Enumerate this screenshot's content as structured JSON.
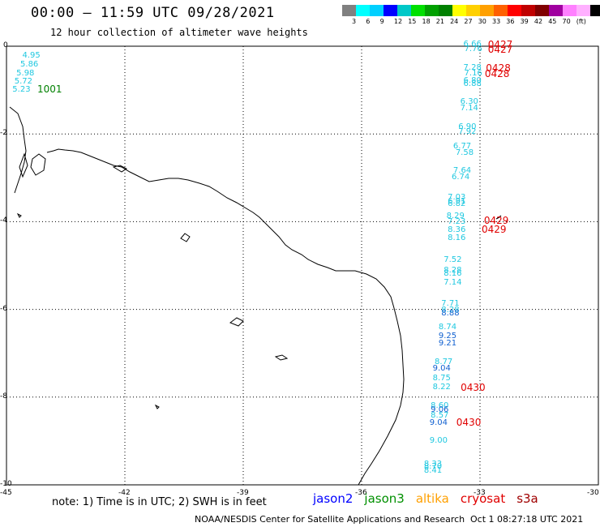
{
  "title": "00:00 – 11:59 UTC 09/28/2021",
  "subtitle": "12 hour collection of altimeter wave heights",
  "colorbar": {
    "colors": [
      "#808080",
      "#00ffff",
      "#00d0ff",
      "#0000ff",
      "#00c8c8",
      "#00e000",
      "#00a000",
      "#008000",
      "#ffff00",
      "#ffd000",
      "#ffa000",
      "#ff6000",
      "#ff0000",
      "#c00000",
      "#800000",
      "#a000a0",
      "#ff80ff",
      "#ffb0ff",
      "#000000"
    ],
    "ticks": [
      "3",
      "6",
      "9",
      "12",
      "15",
      "18",
      "21",
      "24",
      "27",
      "30",
      "33",
      "36",
      "39",
      "42",
      "45",
      "70",
      "(ft)"
    ]
  },
  "axes": {
    "x_ticks": [
      "-45",
      "-42",
      "-39",
      "-36",
      "-33",
      "-30"
    ],
    "y_ticks": [
      "0",
      "-2",
      "-4",
      "-6",
      "-8",
      "-10"
    ]
  },
  "satellites": [
    {
      "name": "jason2",
      "color": "#0000ff"
    },
    {
      "name": "jason3",
      "color": "#009000"
    },
    {
      "name": "altika",
      "color": "#ffa000"
    },
    {
      "name": "cryosat",
      "color": "#e00000"
    },
    {
      "name": "s3a",
      "color": "#a00000"
    }
  ],
  "note": "note: 1) Time is in UTC; 2) SWH is in feet",
  "credit": "NOAA/NESDIS Center for Satellite Applications and Research",
  "credit_time": "Oct  1 08:27:18 UTC 2021",
  "wave_labels": [
    {
      "text": "4.95",
      "lon": -44.6,
      "lat": -0.22,
      "c": "#20c8e0"
    },
    {
      "text": "5.86",
      "lon": -44.65,
      "lat": -0.42,
      "c": "#20c8e0"
    },
    {
      "text": "5.98",
      "lon": -44.75,
      "lat": -0.62,
      "c": "#20c8e0"
    },
    {
      "text": "5.72",
      "lon": -44.8,
      "lat": -0.82,
      "c": "#20c8e0"
    },
    {
      "text": "5.23",
      "lon": -44.85,
      "lat": -1.0,
      "c": "#20c8e0"
    },
    {
      "text": "6.66",
      "lon": -33.42,
      "lat": 0.04,
      "c": "#20c8e0"
    },
    {
      "text": "7.76",
      "lon": -33.4,
      "lat": -0.08,
      "c": "#20c8e0"
    },
    {
      "text": "7.28",
      "lon": -33.42,
      "lat": -0.5,
      "c": "#20c8e0"
    },
    {
      "text": "7.16",
      "lon": -33.4,
      "lat": -0.62,
      "c": "#20c8e0"
    },
    {
      "text": "6.80",
      "lon": -33.42,
      "lat": -0.8,
      "c": "#20c8e0"
    },
    {
      "text": "6.88",
      "lon": -33.42,
      "lat": -0.87,
      "c": "#20c8e0"
    },
    {
      "text": "6.30",
      "lon": -33.5,
      "lat": -1.28,
      "c": "#20c8e0"
    },
    {
      "text": "7.14",
      "lon": -33.5,
      "lat": -1.43,
      "c": "#20c8e0"
    },
    {
      "text": "6.90",
      "lon": -33.55,
      "lat": -1.84,
      "c": "#20c8e0"
    },
    {
      "text": "7.92",
      "lon": -33.55,
      "lat": -1.96,
      "c": "#20c8e0"
    },
    {
      "text": "6.77",
      "lon": -33.68,
      "lat": -2.3,
      "c": "#20c8e0"
    },
    {
      "text": "7.58",
      "lon": -33.62,
      "lat": -2.44,
      "c": "#20c8e0"
    },
    {
      "text": "7.64",
      "lon": -33.68,
      "lat": -2.84,
      "c": "#20c8e0"
    },
    {
      "text": "6.74",
      "lon": -33.72,
      "lat": -3.0,
      "c": "#20c8e0"
    },
    {
      "text": "7.03",
      "lon": -33.82,
      "lat": -3.45,
      "c": "#20c8e0"
    },
    {
      "text": "6.91",
      "lon": -33.82,
      "lat": -3.55,
      "c": "#20c8e0"
    },
    {
      "text": "6.82",
      "lon": -33.82,
      "lat": -3.61,
      "c": "#20c8e0"
    },
    {
      "text": "8.29",
      "lon": -33.85,
      "lat": -3.88,
      "c": "#20c8e0"
    },
    {
      "text": "7.23",
      "lon": -33.82,
      "lat": -4.02,
      "c": "#20c8e0"
    },
    {
      "text": "8.36",
      "lon": -33.82,
      "lat": -4.2,
      "c": "#20c8e0"
    },
    {
      "text": "8.16",
      "lon": -33.82,
      "lat": -4.38,
      "c": "#20c8e0"
    },
    {
      "text": "7.52",
      "lon": -33.92,
      "lat": -4.88,
      "c": "#20c8e0"
    },
    {
      "text": "8.28",
      "lon": -33.92,
      "lat": -5.12,
      "c": "#20c8e0"
    },
    {
      "text": "8.16",
      "lon": -33.92,
      "lat": -5.2,
      "c": "#20c8e0"
    },
    {
      "text": "7.14",
      "lon": -33.92,
      "lat": -5.4,
      "c": "#20c8e0"
    },
    {
      "text": "7.71",
      "lon": -33.98,
      "lat": -5.88,
      "c": "#20c8e0"
    },
    {
      "text": "8.28",
      "lon": -33.98,
      "lat": -6.02,
      "c": "#20c8e0"
    },
    {
      "text": "8.88",
      "lon": -33.98,
      "lat": -6.1,
      "c": "#1060d0"
    },
    {
      "text": "8.74",
      "lon": -34.05,
      "lat": -6.42,
      "c": "#20c8e0"
    },
    {
      "text": "9.25",
      "lon": -34.05,
      "lat": -6.62,
      "c": "#1060d0"
    },
    {
      "text": "9.21",
      "lon": -34.05,
      "lat": -6.78,
      "c": "#1060d0"
    },
    {
      "text": "8.77",
      "lon": -34.15,
      "lat": -7.2,
      "c": "#20c8e0"
    },
    {
      "text": "9.04",
      "lon": -34.2,
      "lat": -7.36,
      "c": "#1060d0"
    },
    {
      "text": "8.75",
      "lon": -34.2,
      "lat": -7.58,
      "c": "#20c8e0"
    },
    {
      "text": "8.22",
      "lon": -34.2,
      "lat": -7.78,
      "c": "#20c8e0"
    },
    {
      "text": "8.60",
      "lon": -34.25,
      "lat": -8.2,
      "c": "#20c8e0"
    },
    {
      "text": "9.06",
      "lon": -34.25,
      "lat": -8.3,
      "c": "#1060d0"
    },
    {
      "text": "8.57",
      "lon": -34.25,
      "lat": -8.42,
      "c": "#20c8e0"
    },
    {
      "text": "9.04",
      "lon": -34.28,
      "lat": -8.6,
      "c": "#1060d0"
    },
    {
      "text": "9.00",
      "lon": -34.28,
      "lat": -9.0,
      "c": "#20c8e0"
    },
    {
      "text": "8.33",
      "lon": -34.42,
      "lat": -9.54,
      "c": "#20c8e0"
    },
    {
      "text": "8.70",
      "lon": -34.42,
      "lat": -9.6,
      "c": "#20c8e0"
    },
    {
      "text": "8.41",
      "lon": -34.42,
      "lat": -9.68,
      "c": "#20c8e0"
    }
  ],
  "pass_labels": [
    {
      "text": "1001",
      "lon": -44.22,
      "lat": -0.98,
      "c": "#008000"
    },
    {
      "text": "0427",
      "lon": -32.8,
      "lat": 0.04,
      "c": "#e00000"
    },
    {
      "text": "0427",
      "lon": -32.8,
      "lat": -0.07,
      "c": "#e00000"
    },
    {
      "text": "0428",
      "lon": -32.85,
      "lat": -0.5,
      "c": "#e00000"
    },
    {
      "text": "0428",
      "lon": -32.88,
      "lat": -0.62,
      "c": "#e00000"
    },
    {
      "text": "0429",
      "lon": -32.9,
      "lat": -3.98,
      "c": "#e00000"
    },
    {
      "text": "0429",
      "lon": -32.96,
      "lat": -4.18,
      "c": "#e00000"
    },
    {
      "text": "0430",
      "lon": -33.49,
      "lat": -7.78,
      "c": "#e00000"
    },
    {
      "text": "0430",
      "lon": -33.6,
      "lat": -8.58,
      "c": "#e00000"
    }
  ]
}
